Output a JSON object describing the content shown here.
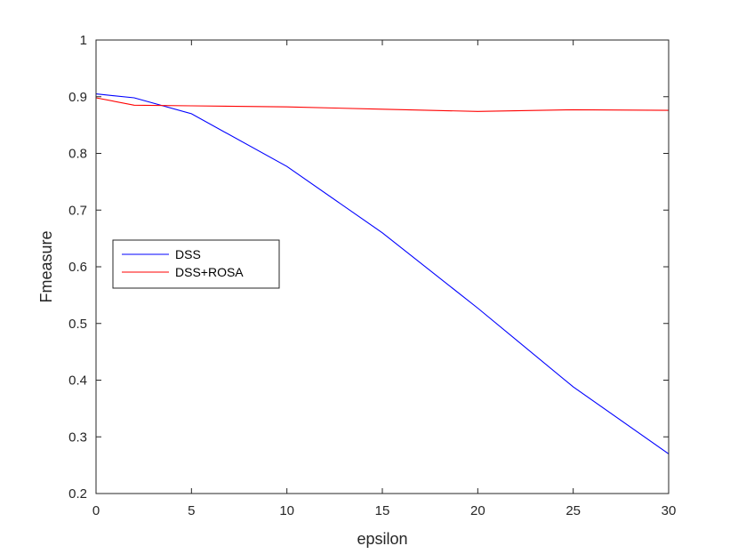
{
  "chart_data": {
    "type": "line",
    "title": "",
    "xlabel": "epsilon",
    "ylabel": "Fmeasure",
    "xlim": [
      0,
      30
    ],
    "ylim": [
      0.2,
      1
    ],
    "xticks": [
      0,
      5,
      10,
      15,
      20,
      25,
      30
    ],
    "yticks": [
      0.2,
      0.3,
      0.4,
      0.5,
      0.6,
      0.7,
      0.8,
      0.9,
      1
    ],
    "xtick_labels": [
      "0",
      "5",
      "10",
      "15",
      "20",
      "25",
      "30"
    ],
    "ytick_labels": [
      "0.2",
      "0.3",
      "0.4",
      "0.5",
      "0.6",
      "0.7",
      "0.8",
      "0.9",
      "1"
    ],
    "grid": false,
    "legend_position": "middle-left",
    "series": [
      {
        "name": "DSS",
        "color": "#0000ff",
        "x": [
          0,
          2,
          5,
          10,
          15,
          20,
          25,
          30
        ],
        "y": [
          0.905,
          0.898,
          0.87,
          0.777,
          0.66,
          0.527,
          0.388,
          0.27
        ]
      },
      {
        "name": "DSS+ROSA",
        "color": "#ff0000",
        "x": [
          0,
          2,
          5,
          10,
          15,
          20,
          25,
          30
        ],
        "y": [
          0.898,
          0.885,
          0.884,
          0.882,
          0.878,
          0.874,
          0.877,
          0.876
        ]
      }
    ]
  }
}
